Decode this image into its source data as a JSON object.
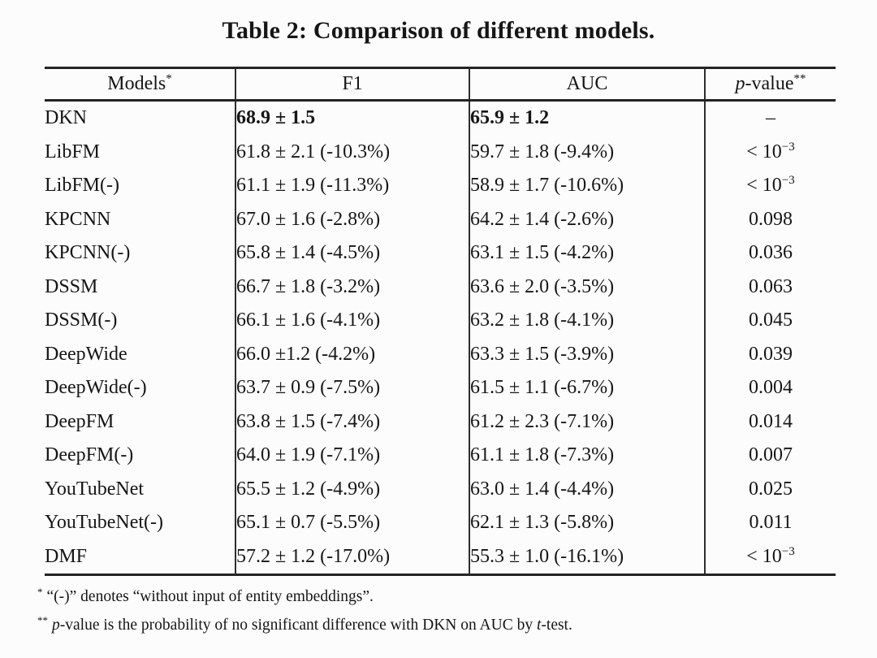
{
  "colors": {
    "background": "#fcfcfc",
    "text": "#161616",
    "rule": "#242424"
  },
  "title": "Table 2: Comparison of different models.",
  "table": {
    "columns": [
      {
        "italic_prefix": "",
        "label": "Models",
        "sup": "*"
      },
      {
        "italic_prefix": "",
        "label": "F1",
        "sup": ""
      },
      {
        "italic_prefix": "",
        "label": "AUC",
        "sup": ""
      },
      {
        "italic_prefix": "p",
        "label": "-value",
        "sup": "**"
      }
    ],
    "rows": [
      {
        "model": "DKN",
        "f1": "68.9 ± 1.5",
        "auc": "65.9 ± 1.2",
        "p": {
          "text": "–"
        },
        "best": true
      },
      {
        "model": "LibFM",
        "f1": "61.8 ± 2.1 (-10.3%)",
        "auc": "59.7 ± 1.8 (-9.4%)",
        "p": {
          "text": "< 10",
          "sup": "−3"
        }
      },
      {
        "model": "LibFM(-)",
        "f1": "61.1 ± 1.9 (-11.3%)",
        "auc": "58.9 ± 1.7 (-10.6%)",
        "p": {
          "text": "< 10",
          "sup": "−3"
        }
      },
      {
        "model": "KPCNN",
        "f1": "67.0 ± 1.6 (-2.8%)",
        "auc": "64.2 ± 1.4 (-2.6%)",
        "p": {
          "text": "0.098"
        }
      },
      {
        "model": "KPCNN(-)",
        "f1": "65.8 ± 1.4 (-4.5%)",
        "auc": "63.1 ± 1.5 (-4.2%)",
        "p": {
          "text": "0.036"
        }
      },
      {
        "model": "DSSM",
        "f1": "66.7 ± 1.8 (-3.2%)",
        "auc": "63.6 ± 2.0 (-3.5%)",
        "p": {
          "text": "0.063"
        }
      },
      {
        "model": "DSSM(-)",
        "f1": "66.1 ± 1.6 (-4.1%)",
        "auc": "63.2 ± 1.8 (-4.1%)",
        "p": {
          "text": "0.045"
        }
      },
      {
        "model": "DeepWide",
        "f1": "66.0 ±1.2 (-4.2%)",
        "auc": "63.3 ± 1.5 (-3.9%)",
        "p": {
          "text": "0.039"
        }
      },
      {
        "model": "DeepWide(-)",
        "f1": "63.7 ± 0.9 (-7.5%)",
        "auc": "61.5 ± 1.1 (-6.7%)",
        "p": {
          "text": "0.004"
        }
      },
      {
        "model": "DeepFM",
        "f1": "63.8 ± 1.5 (-7.4%)",
        "auc": "61.2 ± 2.3 (-7.1%)",
        "p": {
          "text": "0.014"
        }
      },
      {
        "model": "DeepFM(-)",
        "f1": "64.0 ± 1.9 (-7.1%)",
        "auc": "61.1 ± 1.8 (-7.3%)",
        "p": {
          "text": "0.007"
        }
      },
      {
        "model": "YouTubeNet",
        "f1": "65.5 ± 1.2 (-4.9%)",
        "auc": "63.0 ± 1.4 (-4.4%)",
        "p": {
          "text": "0.025"
        }
      },
      {
        "model": "YouTubeNet(-)",
        "f1": "65.1 ± 0.7 (-5.5%)",
        "auc": "62.1 ± 1.3 (-5.8%)",
        "p": {
          "text": "0.011"
        }
      },
      {
        "model": "DMF",
        "f1": "57.2 ± 1.2 (-17.0%)",
        "auc": "55.3 ± 1.0 (-16.1%)",
        "p": {
          "text": "< 10",
          "sup": "−3"
        }
      }
    ]
  },
  "footnotes": {
    "note1": {
      "marker": "*",
      "text": "“(-)” denotes “without input of entity embeddings”."
    },
    "note2": {
      "marker": "**",
      "italic1": "p",
      "text1": "-value is the probability of no significant difference with DKN on AUC by ",
      "italic2": "t",
      "text2": "-test."
    }
  }
}
